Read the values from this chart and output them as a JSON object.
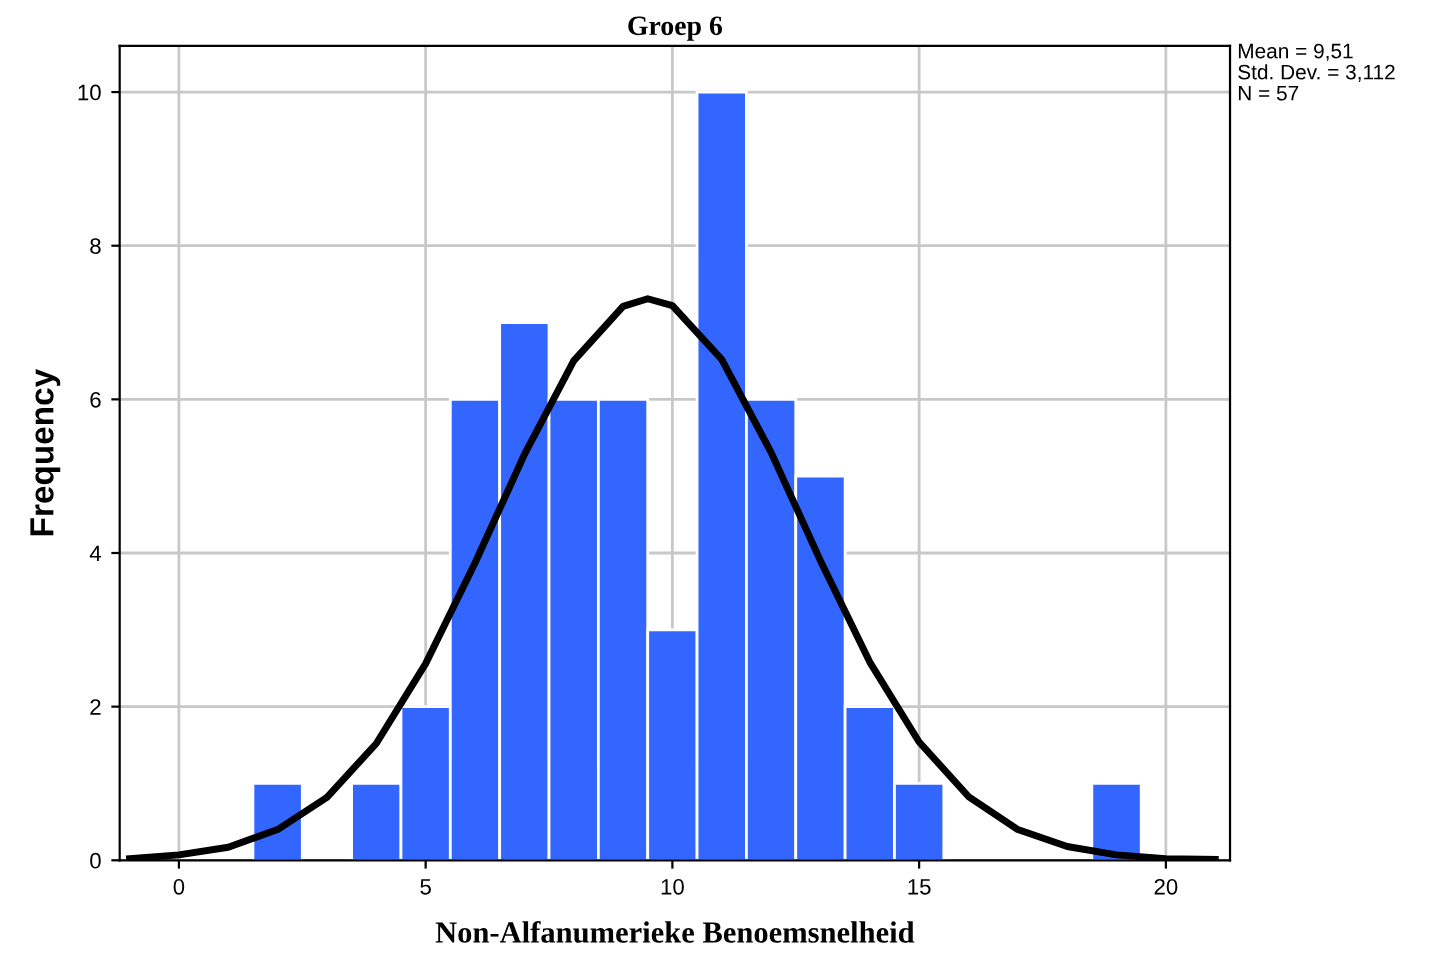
{
  "chart_data": {
    "type": "histogram",
    "title": "Groep 6",
    "xlabel": "Non-Alfanumerieke Benoemsnelheid",
    "ylabel": "Frequency",
    "bins": [
      1.5,
      2.5,
      3.5,
      4.5,
      5.5,
      6.5,
      7.5,
      8.5,
      9.5,
      10.5,
      11.5,
      12.5,
      13.5,
      14.5,
      15.5,
      16.5,
      17.5,
      18.5,
      19.5
    ],
    "series": [
      {
        "color": "#3366ff",
        "values": [
          1,
          0,
          1,
          2,
          6,
          7,
          6,
          6,
          3,
          10,
          6,
          5,
          2,
          1,
          0,
          0,
          0,
          1
        ]
      },
      {
        "type": "line",
        "color": "#000000",
        "x": [
          -1,
          0,
          1,
          2,
          3,
          4,
          5,
          6,
          7,
          8,
          9,
          9.5,
          10,
          11,
          12,
          13,
          14,
          15,
          16,
          17,
          18,
          19,
          20,
          21
        ],
        "values": [
          0.02,
          0.07,
          0.17,
          0.4,
          0.82,
          1.52,
          2.56,
          3.87,
          5.28,
          6.5,
          7.21,
          7.31,
          7.22,
          6.52,
          5.31,
          3.9,
          2.58,
          1.54,
          0.83,
          0.4,
          0.18,
          0.07,
          0.02,
          0.01
        ]
      }
    ],
    "xlim": [
      -1.2,
      21.3
    ],
    "xticks": [
      0,
      5,
      10,
      15,
      20
    ],
    "ylim": [
      0,
      10.6
    ],
    "yticks": [
      0,
      2,
      4,
      6,
      8,
      10
    ],
    "grid": true,
    "annotations": [
      "Mean = 9,51",
      "Std. Dev. = 3,112",
      "N = 57"
    ]
  }
}
